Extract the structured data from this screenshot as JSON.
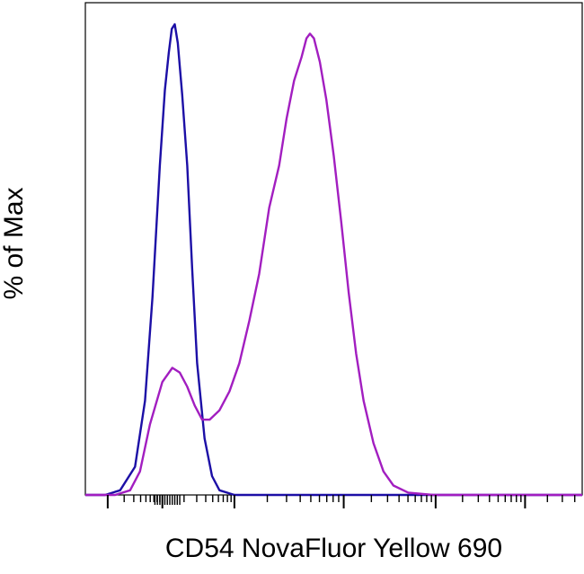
{
  "chart_data": {
    "type": "line",
    "title": "",
    "xlabel": "CD54 NovaFluor Yellow 690",
    "ylabel": "% of Max",
    "x_scale": "log",
    "x_tick_labels": [],
    "y_tick_labels": [],
    "grid": false,
    "legend": "none",
    "ylim": [
      0,
      100
    ],
    "series": [
      {
        "color": "#1c0fa6",
        "points": [
          [
            0.0,
            0
          ],
          [
            0.04,
            0
          ],
          [
            0.07,
            1
          ],
          [
            0.1,
            6
          ],
          [
            0.12,
            20
          ],
          [
            0.135,
            42
          ],
          [
            0.15,
            70
          ],
          [
            0.16,
            86
          ],
          [
            0.168,
            94
          ],
          [
            0.174,
            99
          ],
          [
            0.18,
            100
          ],
          [
            0.186,
            96
          ],
          [
            0.195,
            85
          ],
          [
            0.205,
            70
          ],
          [
            0.215,
            48
          ],
          [
            0.225,
            28
          ],
          [
            0.24,
            12
          ],
          [
            0.255,
            4
          ],
          [
            0.27,
            1
          ],
          [
            0.3,
            0
          ],
          [
            1.0,
            0
          ]
        ]
      },
      {
        "color": "#a21ec0",
        "points": [
          [
            0.0,
            0
          ],
          [
            0.06,
            0
          ],
          [
            0.09,
            1
          ],
          [
            0.11,
            5
          ],
          [
            0.13,
            15
          ],
          [
            0.155,
            24
          ],
          [
            0.175,
            27
          ],
          [
            0.19,
            26
          ],
          [
            0.205,
            23
          ],
          [
            0.22,
            19
          ],
          [
            0.235,
            16
          ],
          [
            0.25,
            16
          ],
          [
            0.27,
            18
          ],
          [
            0.29,
            22
          ],
          [
            0.31,
            28
          ],
          [
            0.33,
            37
          ],
          [
            0.35,
            47
          ],
          [
            0.37,
            61
          ],
          [
            0.39,
            70
          ],
          [
            0.405,
            80
          ],
          [
            0.42,
            88
          ],
          [
            0.435,
            93
          ],
          [
            0.445,
            97
          ],
          [
            0.452,
            98
          ],
          [
            0.46,
            97
          ],
          [
            0.472,
            92
          ],
          [
            0.485,
            84
          ],
          [
            0.5,
            72
          ],
          [
            0.515,
            58
          ],
          [
            0.53,
            43
          ],
          [
            0.545,
            30
          ],
          [
            0.56,
            20
          ],
          [
            0.58,
            11
          ],
          [
            0.6,
            5
          ],
          [
            0.62,
            2
          ],
          [
            0.65,
            0.5
          ],
          [
            0.7,
            0
          ],
          [
            1.0,
            0
          ]
        ]
      }
    ]
  }
}
